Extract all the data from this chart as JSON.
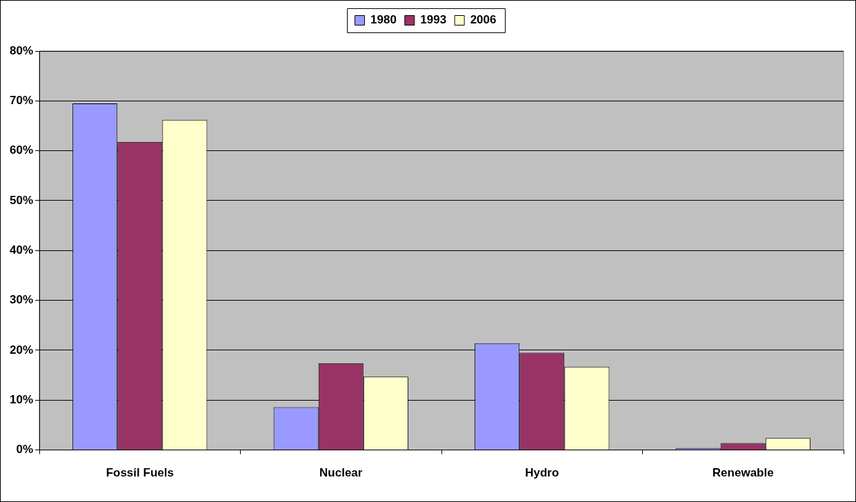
{
  "chart_data": {
    "type": "bar",
    "categories": [
      "Fossil Fuels",
      "Nuclear",
      "Hydro",
      "Renewable"
    ],
    "series": [
      {
        "name": "1980",
        "color": "#9999ff",
        "values": [
          69.5,
          8.6,
          21.4,
          0.4
        ]
      },
      {
        "name": "1993",
        "color": "#993366",
        "values": [
          61.8,
          17.4,
          19.5,
          1.4
        ]
      },
      {
        "name": "2006",
        "color": "#ffffcc",
        "values": [
          66.2,
          14.7,
          16.7,
          2.4
        ]
      }
    ],
    "ylim": [
      0,
      80
    ],
    "yticks": [
      {
        "value": 0,
        "label": "0%"
      },
      {
        "value": 10,
        "label": "10%"
      },
      {
        "value": 20,
        "label": "20%"
      },
      {
        "value": 30,
        "label": "30%"
      },
      {
        "value": 40,
        "label": "40%"
      },
      {
        "value": 50,
        "label": "50%"
      },
      {
        "value": 60,
        "label": "60%"
      },
      {
        "value": 70,
        "label": "70%"
      },
      {
        "value": 80,
        "label": "80%"
      }
    ],
    "grid": "y",
    "legend": "top"
  }
}
